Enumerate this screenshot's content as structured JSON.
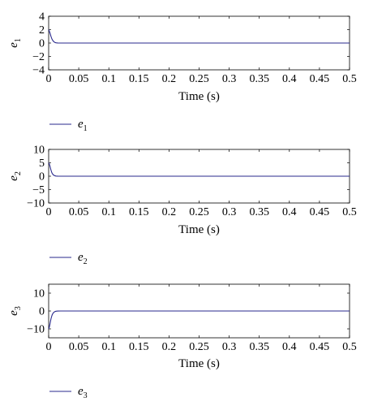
{
  "chart_data": [
    {
      "type": "line",
      "ylabel": "e",
      "ylabel_sub": "1",
      "xlabel": "Time (s)",
      "xlim": [
        0,
        0.5
      ],
      "ylim": [
        -4,
        4
      ],
      "xticks": [
        "0",
        "0.05",
        "0.1",
        "0.15",
        "0.2",
        "0.25",
        "0.3",
        "0.35",
        "0.4",
        "0.45",
        "0.5"
      ],
      "yticks": [
        "4",
        "2",
        "0",
        "−2",
        "−4"
      ],
      "ytick_values": [
        4,
        2,
        0,
        -2,
        -4
      ],
      "grid": false,
      "legend_position": "below",
      "series": [
        {
          "name": "e",
          "name_sub": "1",
          "color": "#2a2a8c",
          "x": [
            0,
            0.001,
            0.002,
            0.003,
            0.004,
            0.005,
            0.006,
            0.008,
            0.01,
            0.012,
            0.015,
            0.02,
            0.03,
            0.5
          ],
          "y": [
            2.0,
            1.8,
            1.55,
            1.25,
            0.95,
            0.7,
            0.5,
            0.25,
            0.1,
            0.04,
            0.01,
            0,
            0,
            0
          ]
        }
      ]
    },
    {
      "type": "line",
      "ylabel": "e",
      "ylabel_sub": "2",
      "xlabel": "Time (s)",
      "xlim": [
        0,
        0.5
      ],
      "ylim": [
        -10,
        10
      ],
      "xticks": [
        "0",
        "0.05",
        "0.1",
        "0.15",
        "0.2",
        "0.25",
        "0.3",
        "0.35",
        "0.4",
        "0.45",
        "0.5"
      ],
      "yticks": [
        "10",
        "5",
        "0",
        "−5",
        "−10"
      ],
      "ytick_values": [
        10,
        5,
        0,
        -5,
        -10
      ],
      "grid": false,
      "legend_position": "below",
      "series": [
        {
          "name": "e",
          "name_sub": "2",
          "color": "#2a2a8c",
          "x": [
            0,
            0.001,
            0.002,
            0.003,
            0.004,
            0.005,
            0.006,
            0.008,
            0.01,
            0.012,
            0.015,
            0.02,
            0.03,
            0.5
          ],
          "y": [
            5.0,
            4.6,
            3.9,
            3.0,
            2.2,
            1.5,
            1.0,
            0.45,
            0.2,
            0.07,
            0.02,
            0,
            0,
            0
          ]
        }
      ]
    },
    {
      "type": "line",
      "ylabel": "e",
      "ylabel_sub": "3",
      "xlabel": "Time (s)",
      "xlim": [
        0,
        0.5
      ],
      "ylim": [
        -15,
        15
      ],
      "xticks": [
        "0",
        "0.05",
        "0.1",
        "0.15",
        "0.2",
        "0.25",
        "0.3",
        "0.35",
        "0.4",
        "0.45",
        "0.5"
      ],
      "yticks": [
        "10",
        "0",
        "−10"
      ],
      "ytick_values": [
        10,
        0,
        -10
      ],
      "grid": false,
      "legend_position": "below",
      "series": [
        {
          "name": "e",
          "name_sub": "3",
          "color": "#2a2a8c",
          "x": [
            0,
            0.001,
            0.002,
            0.003,
            0.004,
            0.005,
            0.006,
            0.008,
            0.01,
            0.012,
            0.015,
            0.02,
            0.03,
            0.5
          ],
          "y": [
            -10.0,
            -9.2,
            -7.6,
            -5.8,
            -4.2,
            -3.0,
            -2.0,
            -0.9,
            -0.4,
            -0.15,
            -0.04,
            0,
            0,
            0
          ]
        }
      ]
    }
  ]
}
